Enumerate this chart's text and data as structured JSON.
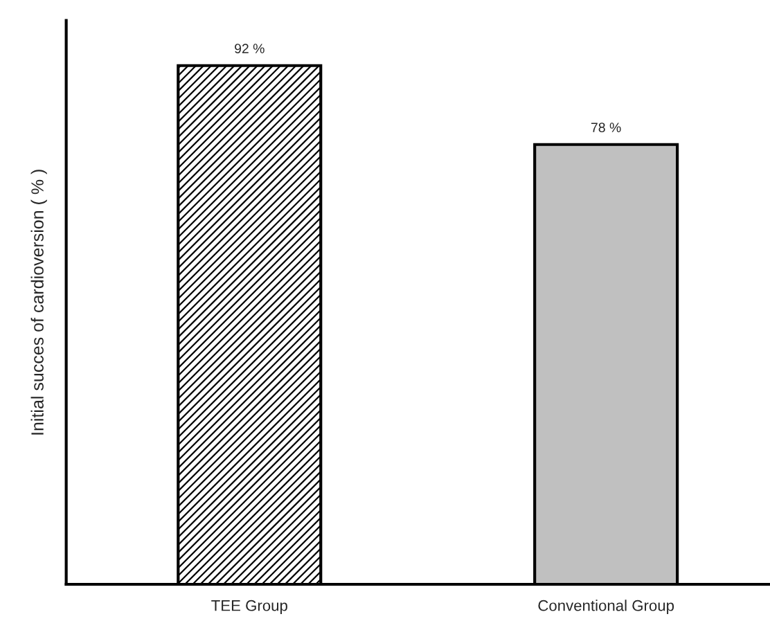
{
  "chart_data": {
    "type": "bar",
    "ylabel": "Initial succes of cardioversion ( % )",
    "categories": [
      "TEE Group",
      "Conventional Group"
    ],
    "values": [
      92,
      78
    ],
    "colors": [
      "#000000",
      "#c0c0c0"
    ],
    "value_labels": [
      "92 %",
      "78 %"
    ],
    "ylim": [
      0,
      100
    ],
    "grid": false,
    "legend": false
  }
}
